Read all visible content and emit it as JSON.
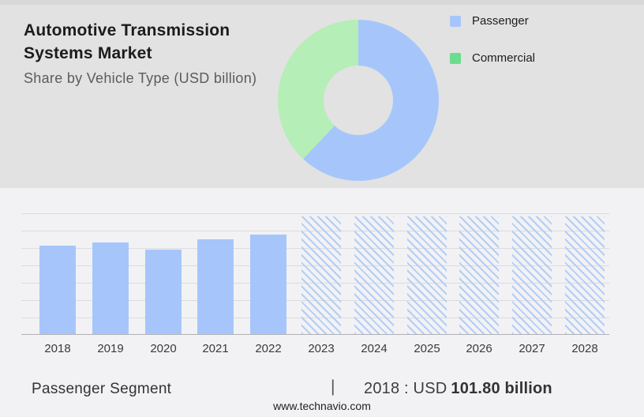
{
  "header": {
    "title_line1": "Automotive Transmission",
    "title_line2": "Systems Market",
    "subtitle": "Share by Vehicle Type (USD billion)"
  },
  "legend": {
    "items": [
      {
        "label": "Passenger",
        "swatch": "#a6c6fb"
      },
      {
        "label": "Commercial",
        "swatch": "#6cdd8e"
      }
    ]
  },
  "chart_data": [
    {
      "type": "pie",
      "donut": true,
      "title": "Share by Vehicle Type (USD billion)",
      "labels": [
        "Passenger",
        "Commercial"
      ],
      "values": [
        62,
        38
      ],
      "unit": "%",
      "colors": [
        "#a6c6fb",
        "#b5eeb7"
      ],
      "legend_position": "right",
      "note": "percent shares estimated from arc angles"
    },
    {
      "type": "bar",
      "categories": [
        "2018",
        "2019",
        "2020",
        "2021",
        "2022",
        "2023",
        "2024",
        "2025",
        "2026",
        "2027",
        "2028"
      ],
      "values": [
        101.8,
        105.5,
        97.3,
        109.1,
        114.5,
        null,
        null,
        null,
        null,
        null,
        null
      ],
      "forecast": [
        false,
        false,
        false,
        false,
        false,
        true,
        true,
        true,
        true,
        true,
        true
      ],
      "xlabel": "",
      "ylabel": "USD billion",
      "ylim": [
        0,
        140
      ],
      "grid": true,
      "bar_color": "#a6c6fb",
      "forecast_hatch_color": "#b3cdf6",
      "note": "2018 value labeled in footer as USD 101.80 billion; 2019-2022 estimated from bar heights; 2023-2028 are full-height hatched forecast placeholders"
    }
  ],
  "footer": {
    "segment_label": "Passenger Segment",
    "separator": "|",
    "stat_prefix": "2018 : USD",
    "stat_value": "101.80 billion",
    "website": "www.technavio.com"
  }
}
